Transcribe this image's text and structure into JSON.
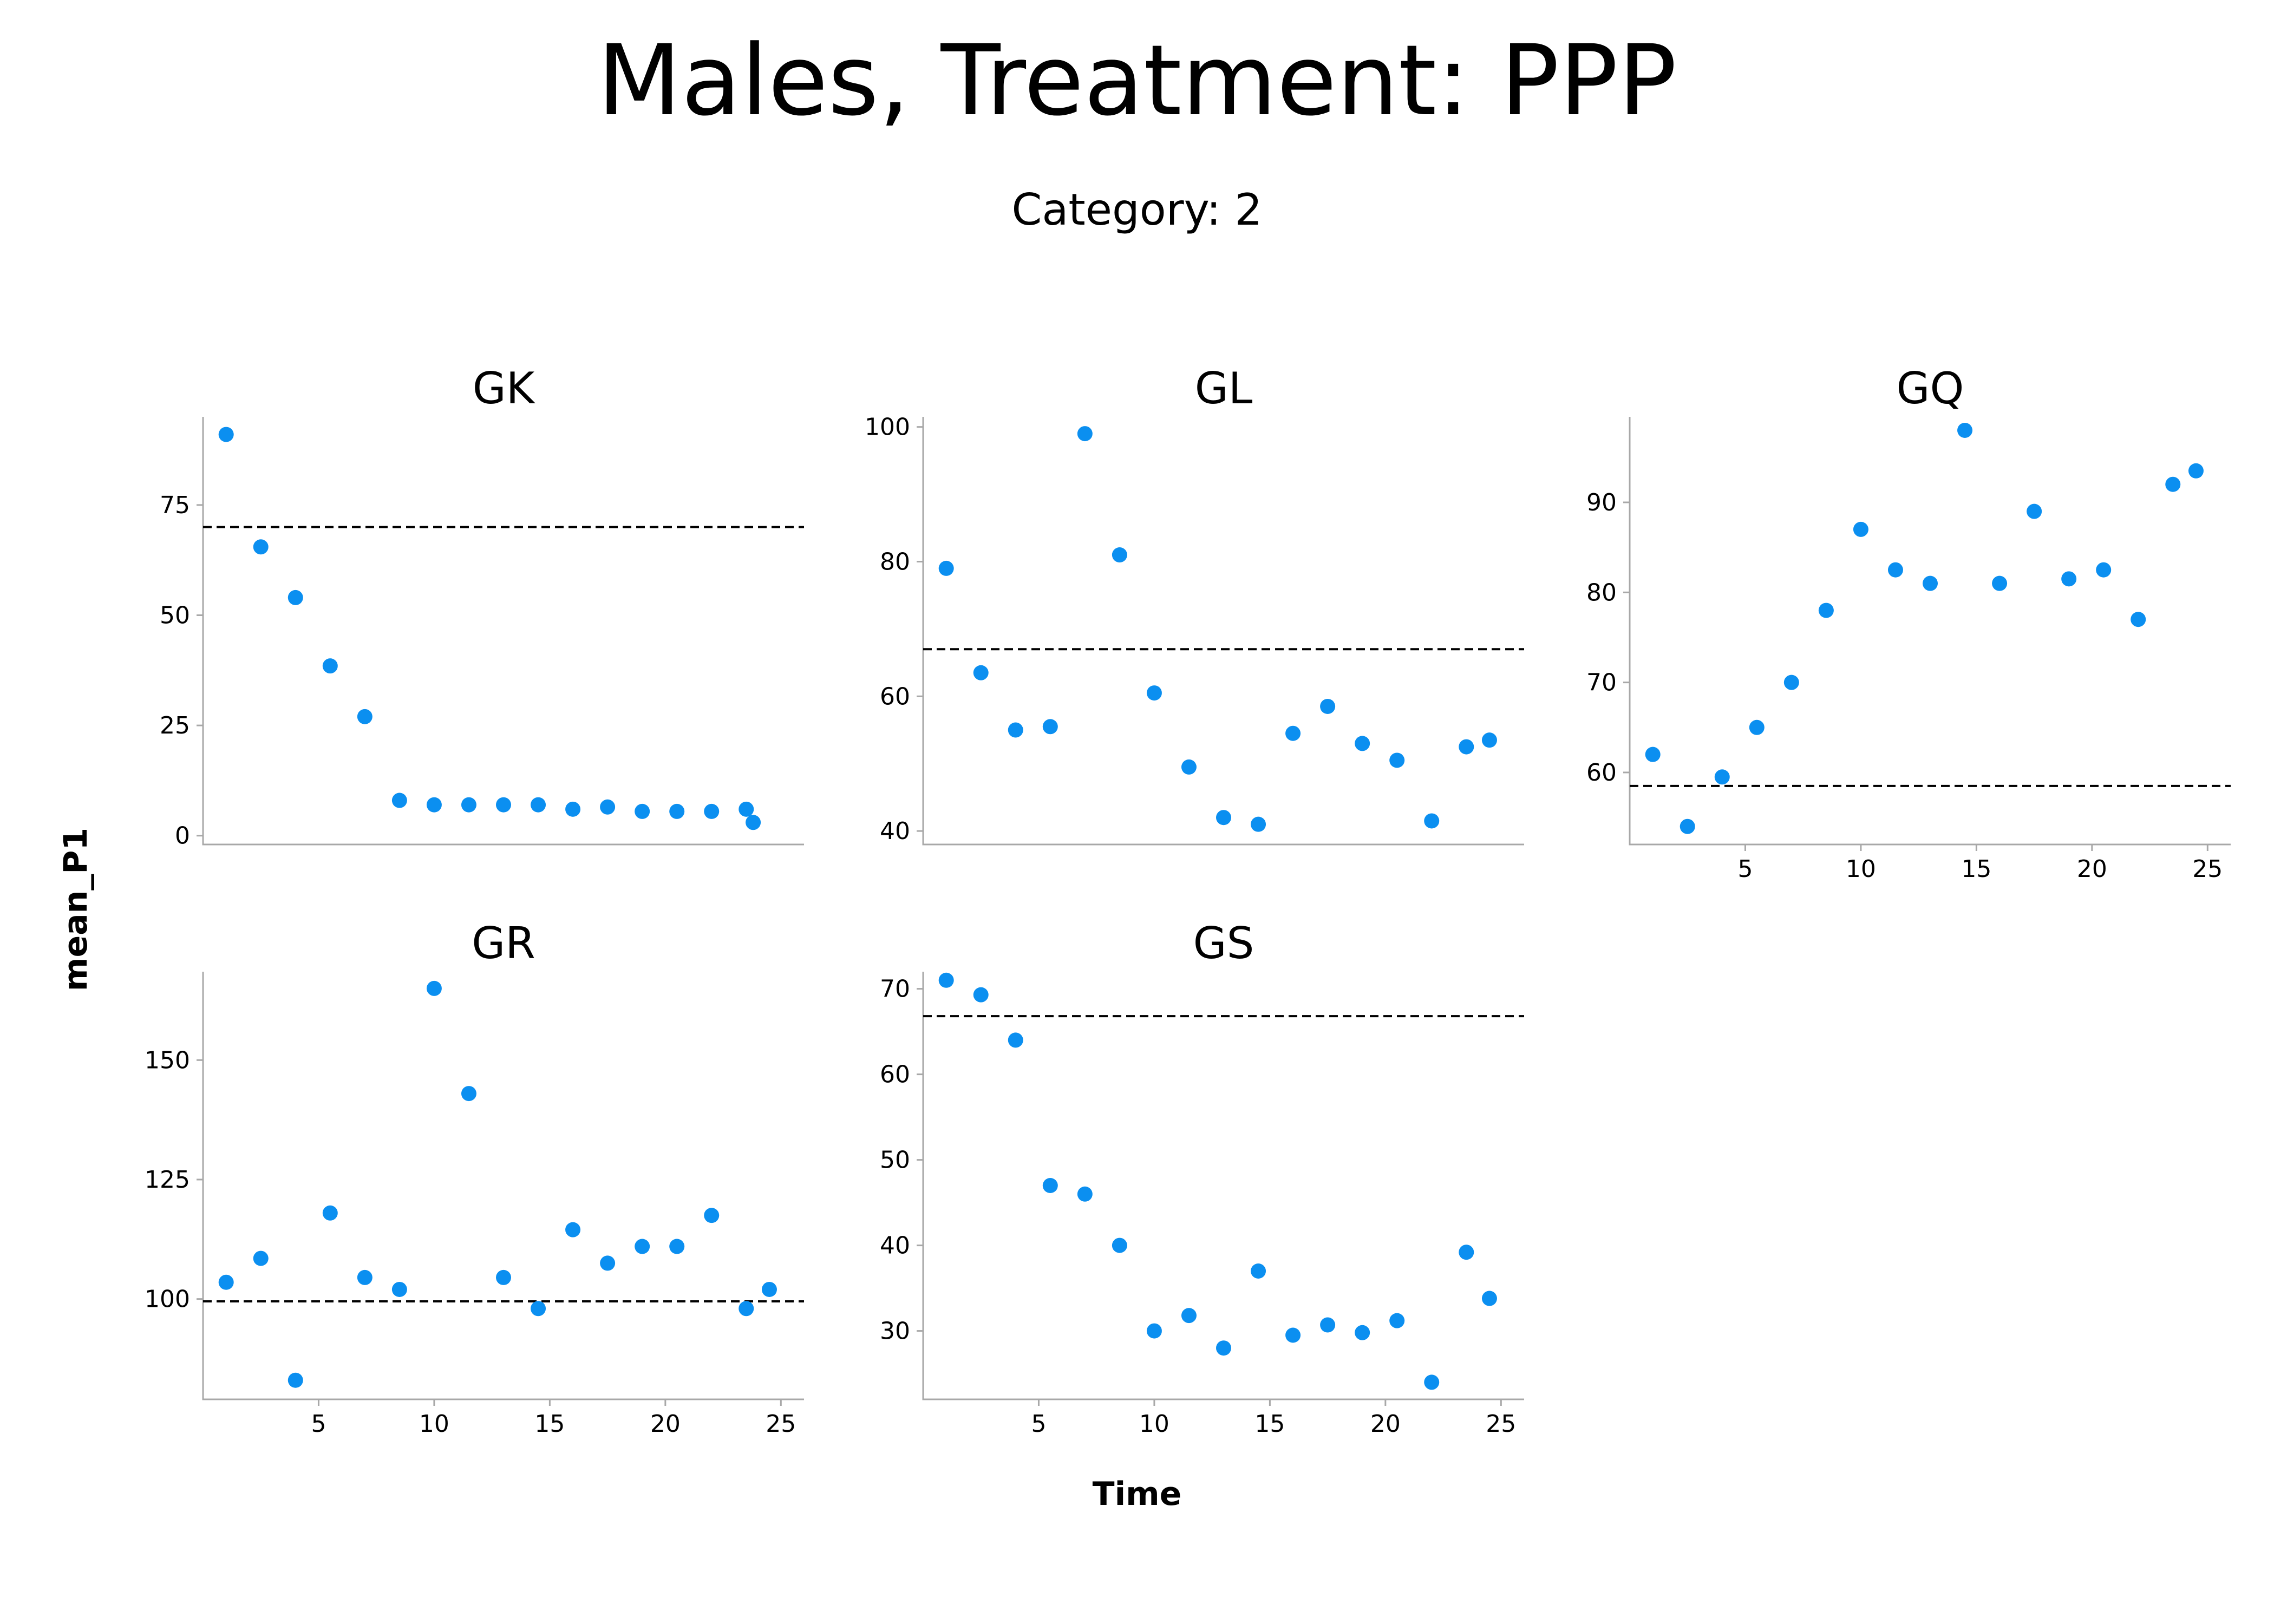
{
  "title": "Males, Treatment: PPP",
  "subtitle": "Category: 2",
  "xlabel": "Time",
  "ylabel": "mean_P1",
  "colors": {
    "point": "#0b8ff0",
    "reference_line": "#000000",
    "axis": "#a8a8a8"
  },
  "chart_data": [
    {
      "type": "scatter",
      "title": "GK",
      "x": [
        1,
        2.5,
        4,
        5.5,
        7,
        8.5,
        10,
        11.5,
        13,
        14.5,
        16,
        17.5,
        19,
        20.5,
        22,
        23.5,
        23.8
      ],
      "y": [
        91,
        65.5,
        54,
        38.5,
        27,
        8,
        7,
        7,
        7,
        7,
        6,
        6.5,
        5.5,
        5.5,
        5.5,
        6,
        3
      ],
      "reference_line": 70,
      "xlim": [
        0,
        26
      ],
      "ylim": [
        -2,
        95
      ],
      "yticks": [
        0,
        25,
        50,
        75
      ],
      "xticks": [],
      "grid": false
    },
    {
      "type": "scatter",
      "title": "GL",
      "x": [
        1,
        2.5,
        4,
        5.5,
        7,
        8.5,
        10,
        11.5,
        13,
        14.5,
        16,
        17.5,
        19,
        20.5,
        22,
        23.5,
        24.5
      ],
      "y": [
        79,
        63.5,
        55,
        55.5,
        99,
        81,
        60.5,
        49.5,
        42,
        41,
        54.5,
        58.5,
        53,
        50.5,
        41.5,
        52.5,
        53.5
      ],
      "reference_line": 67,
      "xlim": [
        0,
        26
      ],
      "ylim": [
        38,
        101.5
      ],
      "yticks": [
        40,
        60,
        80,
        100
      ],
      "xticks": [],
      "grid": false
    },
    {
      "type": "scatter",
      "title": "GQ",
      "x": [
        1,
        2.5,
        4,
        5.5,
        7,
        8.5,
        10,
        11.5,
        13,
        14.5,
        16,
        17.5,
        19,
        20.5,
        22,
        23.5,
        24.5
      ],
      "y": [
        62,
        54,
        59.5,
        65,
        70,
        78,
        87,
        82.5,
        81,
        98,
        81,
        89,
        81.5,
        82.5,
        77,
        92,
        93.5
      ],
      "reference_line": 58.5,
      "xlim": [
        0,
        26
      ],
      "ylim": [
        52,
        99.5
      ],
      "yticks": [
        60,
        70,
        80,
        90
      ],
      "xticks": [
        5,
        10,
        15,
        20,
        25
      ],
      "grid": false
    },
    {
      "type": "scatter",
      "title": "GR",
      "x": [
        1,
        2.5,
        4,
        5.5,
        7,
        8.5,
        10,
        11.5,
        13,
        14.5,
        16,
        17.5,
        19,
        20.5,
        22,
        23.5,
        24.5
      ],
      "y": [
        103.5,
        108.5,
        83,
        118,
        104.5,
        102,
        165,
        143,
        104.5,
        98,
        114.5,
        107.5,
        111,
        111,
        117.5,
        98,
        102
      ],
      "reference_line": 99.5,
      "xlim": [
        0,
        26
      ],
      "ylim": [
        79,
        168.5
      ],
      "yticks": [
        100,
        125,
        150
      ],
      "xticks": [
        5,
        10,
        15,
        20,
        25
      ],
      "grid": false
    },
    {
      "type": "scatter",
      "title": "GS",
      "x": [
        1,
        2.5,
        4,
        5.5,
        7,
        8.5,
        10,
        11.5,
        13,
        14.5,
        16,
        17.5,
        19,
        20.5,
        22,
        23.5,
        24.5
      ],
      "y": [
        71,
        69.3,
        64,
        47,
        46,
        40,
        30,
        31.8,
        28,
        37,
        29.5,
        30.7,
        29.8,
        31.2,
        24,
        39.2,
        33.8
      ],
      "reference_line": 66.8,
      "xlim": [
        0,
        26
      ],
      "ylim": [
        22,
        72
      ],
      "yticks": [
        30,
        40,
        50,
        60,
        70
      ],
      "xticks": [
        5,
        10,
        15,
        20,
        25
      ],
      "grid": false
    }
  ]
}
